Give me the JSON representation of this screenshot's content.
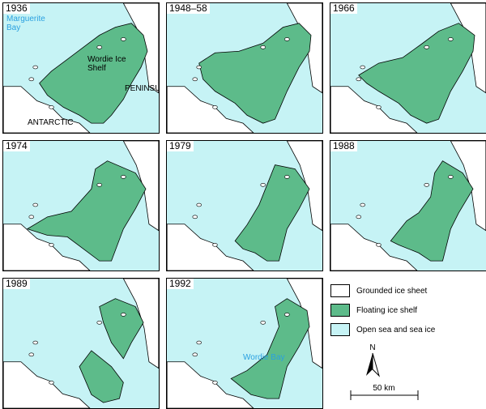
{
  "panels": [
    {
      "label": "1936",
      "annotations": [
        "Marguerite Bay",
        "Wordie Ice Shelf",
        "ANTARCTIC",
        "PENINSULA"
      ]
    },
    {
      "label": "1948–58"
    },
    {
      "label": "1966"
    },
    {
      "label": "1974"
    },
    {
      "label": "1979"
    },
    {
      "label": "1988"
    },
    {
      "label": "1989"
    },
    {
      "label": "1992",
      "annotations": [
        "Wordie Bay"
      ]
    }
  ],
  "legend": {
    "items": [
      "Grounded ice sheet",
      "Floating ice shelf",
      "Open sea and sea ice"
    ],
    "north": "N",
    "scale": "50 km"
  }
}
